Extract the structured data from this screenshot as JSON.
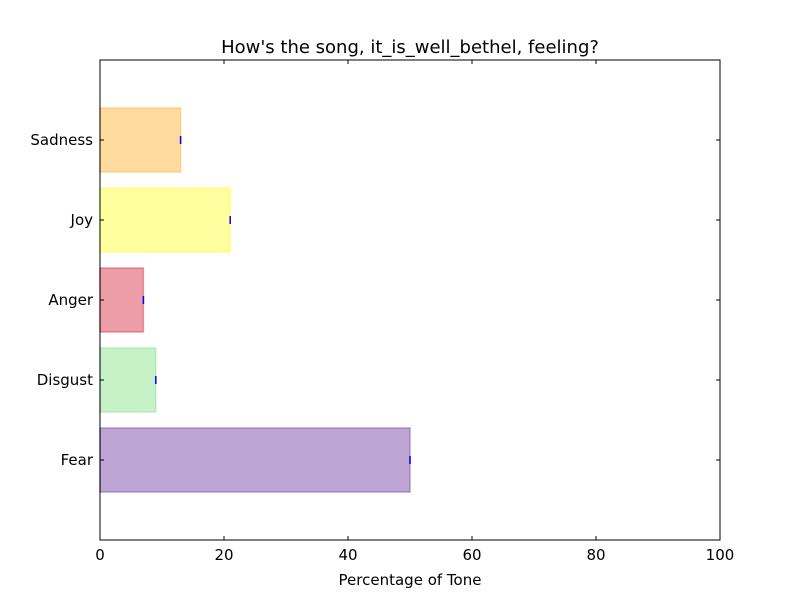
{
  "chart_data": {
    "type": "bar",
    "orientation": "horizontal",
    "title": "How's the song, it_is_well_bethel, feeling?",
    "xlabel": "Percentage of Tone",
    "ylabel": "",
    "xlim": [
      0,
      100
    ],
    "xticks": [
      "0",
      "20",
      "40",
      "60",
      "80",
      "100"
    ],
    "categories": [
      "Fear",
      "Disgust",
      "Anger",
      "Joy",
      "Sadness"
    ],
    "values": [
      50,
      9,
      7,
      21,
      13
    ],
    "colors": [
      "#7b4ea9",
      "#8fe38f",
      "#dc3c52",
      "#ffff40",
      "#ffb742"
    ],
    "bar_alpha": 0.5,
    "errorbar_color": "#0000ff",
    "grid": false
  }
}
